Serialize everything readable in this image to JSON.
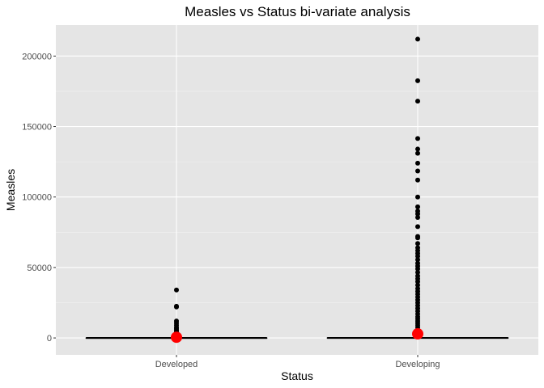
{
  "chart_data": {
    "type": "boxplot",
    "title": "Measles vs Status bi-variate analysis",
    "xlabel": "Status",
    "ylabel": "Measles",
    "categories": [
      "Developed",
      "Developing"
    ],
    "ylim": [
      -12000,
      222000
    ],
    "yticks": [
      0,
      50000,
      100000,
      150000,
      200000
    ],
    "ytick_labels": [
      "0",
      "50000",
      "100000",
      "150000",
      "200000"
    ],
    "grid": true,
    "legend": "none",
    "colors": {
      "panel": "#e5e5e5",
      "grid_major": "#ffffff",
      "grid_minor": "#f2f2f2",
      "box": "#000000",
      "outlier": "#000000",
      "mean_point": "#ff0000"
    },
    "boxes": [
      {
        "category": "Developed",
        "q1": 0,
        "median": 0,
        "q3": 0,
        "whisker_low": 0,
        "whisker_high": 0,
        "mean": 500,
        "outliers": [
          34000,
          22500,
          22000,
          12000,
          10500,
          9000,
          7500,
          6500,
          5500,
          4500,
          3500,
          2800,
          2200,
          1600,
          1100,
          700
        ]
      },
      {
        "category": "Developing",
        "q1": 0,
        "median": 0,
        "q3": 100,
        "whisker_low": 0,
        "whisker_high": 300,
        "mean": 2900,
        "outliers": [
          212000,
          182500,
          168000,
          141500,
          134000,
          131000,
          124000,
          118500,
          112000,
          100000,
          93000,
          90000,
          88000,
          85500,
          79000,
          72000,
          71000,
          67000,
          64000,
          62000,
          60000,
          58000,
          55500,
          53000,
          51000,
          49000,
          46500,
          44000,
          42000,
          40000,
          37500,
          35000,
          33000,
          31000,
          29000,
          27000,
          25000,
          23000,
          21000,
          19000,
          17000,
          15000,
          13500,
          12000,
          10500,
          9000,
          7500,
          6000,
          5000,
          4000,
          3000,
          2200,
          1500,
          900
        ]
      }
    ]
  }
}
